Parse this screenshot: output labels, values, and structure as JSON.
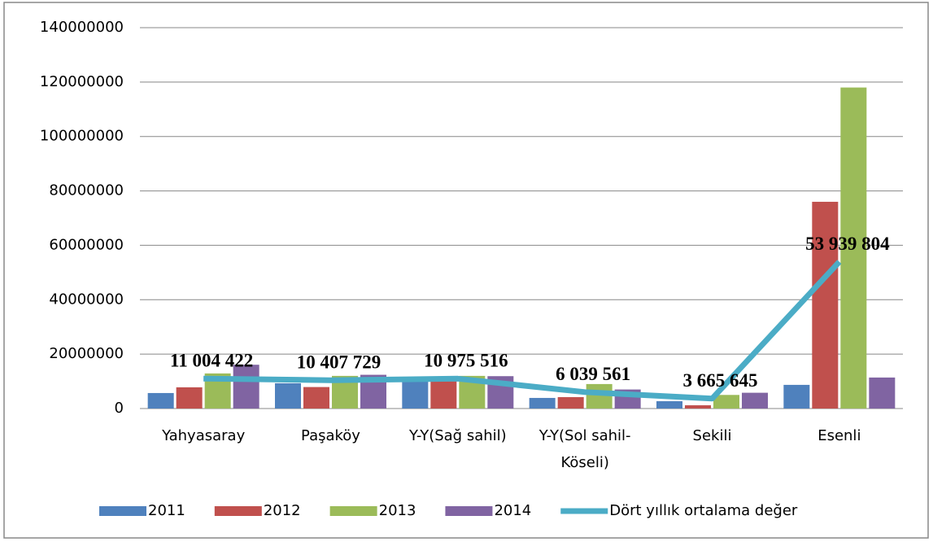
{
  "chart_data": {
    "type": "bar_line",
    "categories": [
      "Yahyasaray",
      "Paşaköy",
      "Y-Y(Sağ sahil)",
      "Y-Y(Sol sahil-Köseli)",
      "Sekili",
      "Esenli"
    ],
    "series": [
      {
        "name": "2011",
        "color": "#4f81bd",
        "type": "bar",
        "values": [
          5700000,
          9300000,
          10000000,
          3900000,
          2700000,
          8700000
        ]
      },
      {
        "name": "2012",
        "color": "#c0504d",
        "type": "bar",
        "values": [
          7800000,
          7900000,
          10000000,
          4200000,
          1200000,
          76000000
        ]
      },
      {
        "name": "2013",
        "color": "#9bbb59",
        "type": "bar",
        "values": [
          12900000,
          12000000,
          12000000,
          9000000,
          5000000,
          118000000
        ]
      },
      {
        "name": "2014",
        "color": "#8064a2",
        "type": "bar",
        "values": [
          16100000,
          12400000,
          11900000,
          7000000,
          5800000,
          11400000
        ]
      },
      {
        "name": "Dört yıllık ortalama değer",
        "color": "#4bacc6",
        "type": "line",
        "values": [
          11004422,
          10407729,
          10975516,
          6039561,
          3665645,
          53939804
        ],
        "value_labels": [
          "11 004 422",
          "10 407 729",
          "10 975 516",
          "6 039 561",
          "3 665 645",
          "53 939 804"
        ]
      }
    ],
    "ylim": [
      0,
      140000000
    ],
    "yticks": [
      0,
      20000000,
      40000000,
      60000000,
      80000000,
      100000000,
      120000000,
      140000000
    ],
    "grid": true,
    "legend": "bottom"
  }
}
